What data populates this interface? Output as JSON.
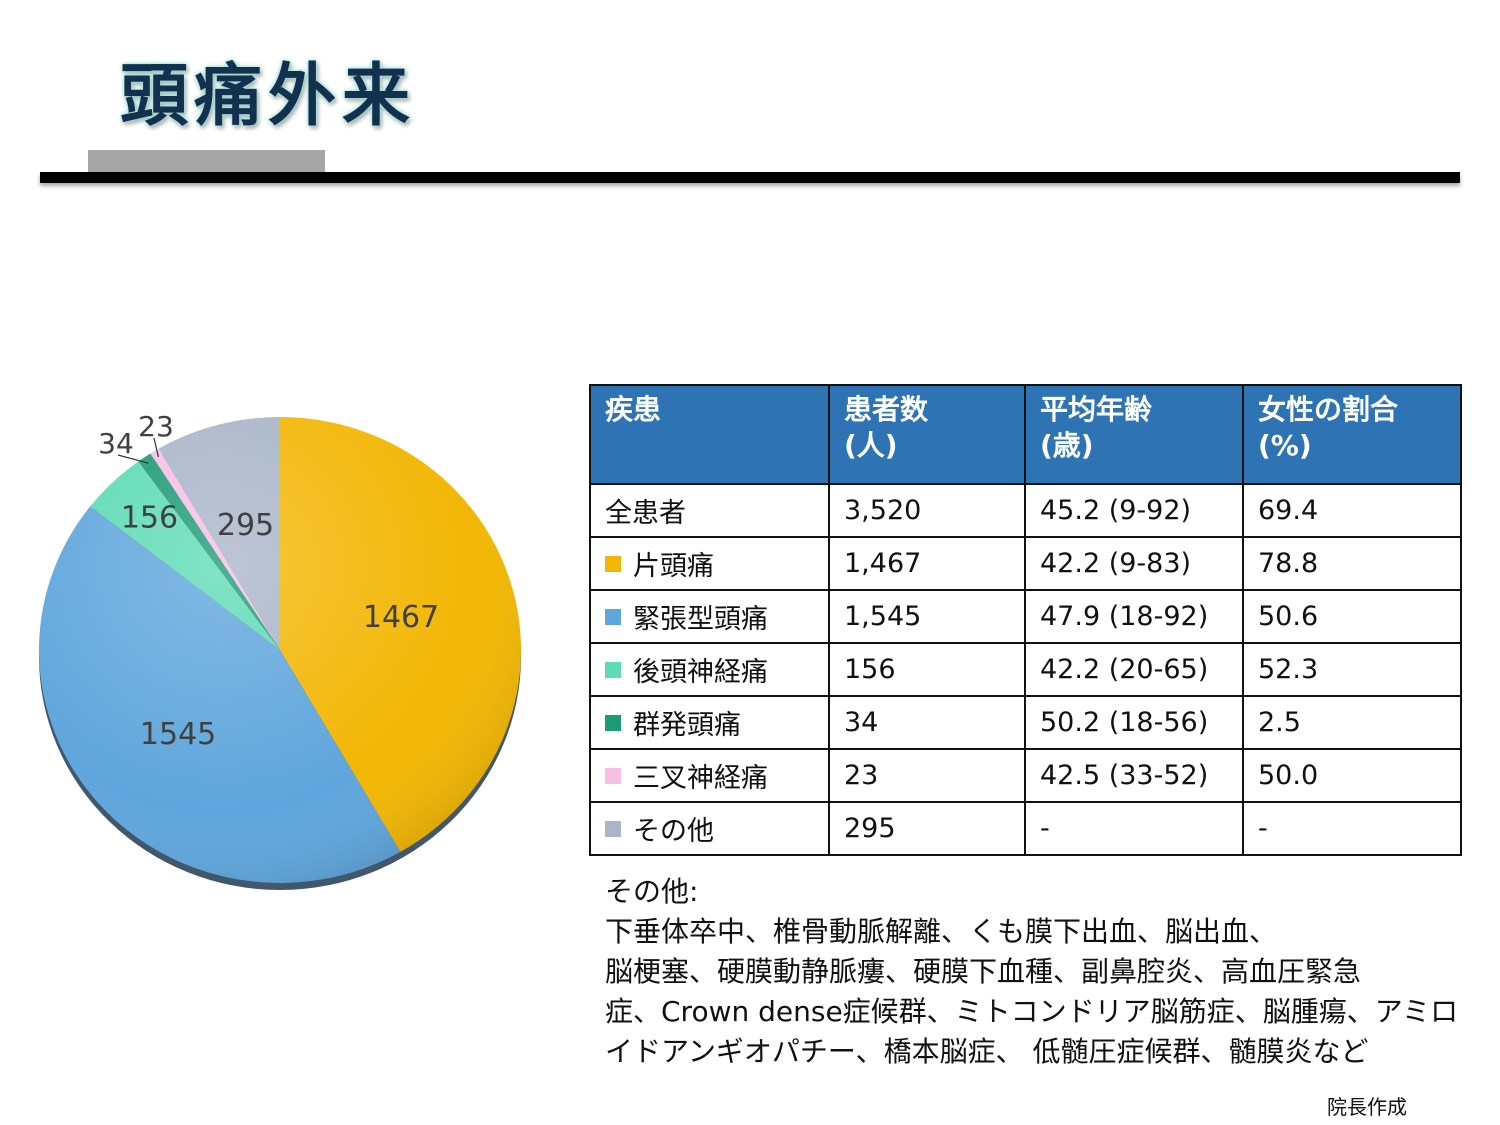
{
  "title": "頭痛外来",
  "chart_data": {
    "type": "pie",
    "start": "12 o'clock",
    "direction": "clockwise",
    "slices": [
      {
        "label": "1467",
        "value": 1467,
        "color": "#f2b705"
      },
      {
        "label": "1545",
        "value": 1545,
        "color": "#5fa6dc"
      },
      {
        "label": "156",
        "value": 156,
        "color": "#5ddbb4"
      },
      {
        "label": "34",
        "value": 34,
        "color": "#1e9a76"
      },
      {
        "label": "23",
        "value": 23,
        "color": "#f7bfe4"
      },
      {
        "label": "295",
        "value": 295,
        "color": "#a9b5c8"
      }
    ]
  },
  "table": {
    "headers": [
      [
        "疾患",
        ""
      ],
      [
        "患者数",
        "(人)"
      ],
      [
        "平均年齢",
        "(歳)"
      ],
      [
        "女性の割合",
        "(%)"
      ]
    ],
    "rows": [
      {
        "name": "全患者",
        "count": "3,520",
        "age": "45.2 (9-92)",
        "female": "69.4",
        "color": ""
      },
      {
        "name": "片頭痛",
        "count": "1,467",
        "age": "42.2  (9-83)",
        "female": "78.8",
        "color": "#f2b705"
      },
      {
        "name": "緊張型頭痛",
        "count": "1,545",
        "age": "47.9 (18-92)",
        "female": "50.6",
        "color": "#5fa6dc"
      },
      {
        "name": "後頭神経痛",
        "count": "156",
        "age": "42.2 (20-65)",
        "female": "52.3",
        "color": "#5ddbb4"
      },
      {
        "name": "群発頭痛",
        "count": "34",
        "age": "50.2 (18-56)",
        "female": "2.5",
        "color": "#1e9a76"
      },
      {
        "name": "三叉神経痛",
        "count": "23",
        "age": "42.5 (33-52)",
        "female": "50.0",
        "color": "#f7bfe4"
      },
      {
        "name": "その他",
        "count": "295",
        "age": "-",
        "female": "-",
        "color": "#a9b5c8"
      }
    ]
  },
  "notes": {
    "heading": "その他:",
    "lines": [
      "下垂体卒中、椎骨動脈解離、くも膜下出血、脳出血、",
      "脳梗塞、硬膜動静脈瘻、硬膜下血種、副鼻腔炎、高血圧緊急",
      "症、Crown dense症候群、ミトコンドリア脳筋症、脳腫瘍、アミロ",
      "イドアンギオパチー、橋本脳症、 低髄圧症候群、髄膜炎など"
    ]
  },
  "author": "院長作成"
}
